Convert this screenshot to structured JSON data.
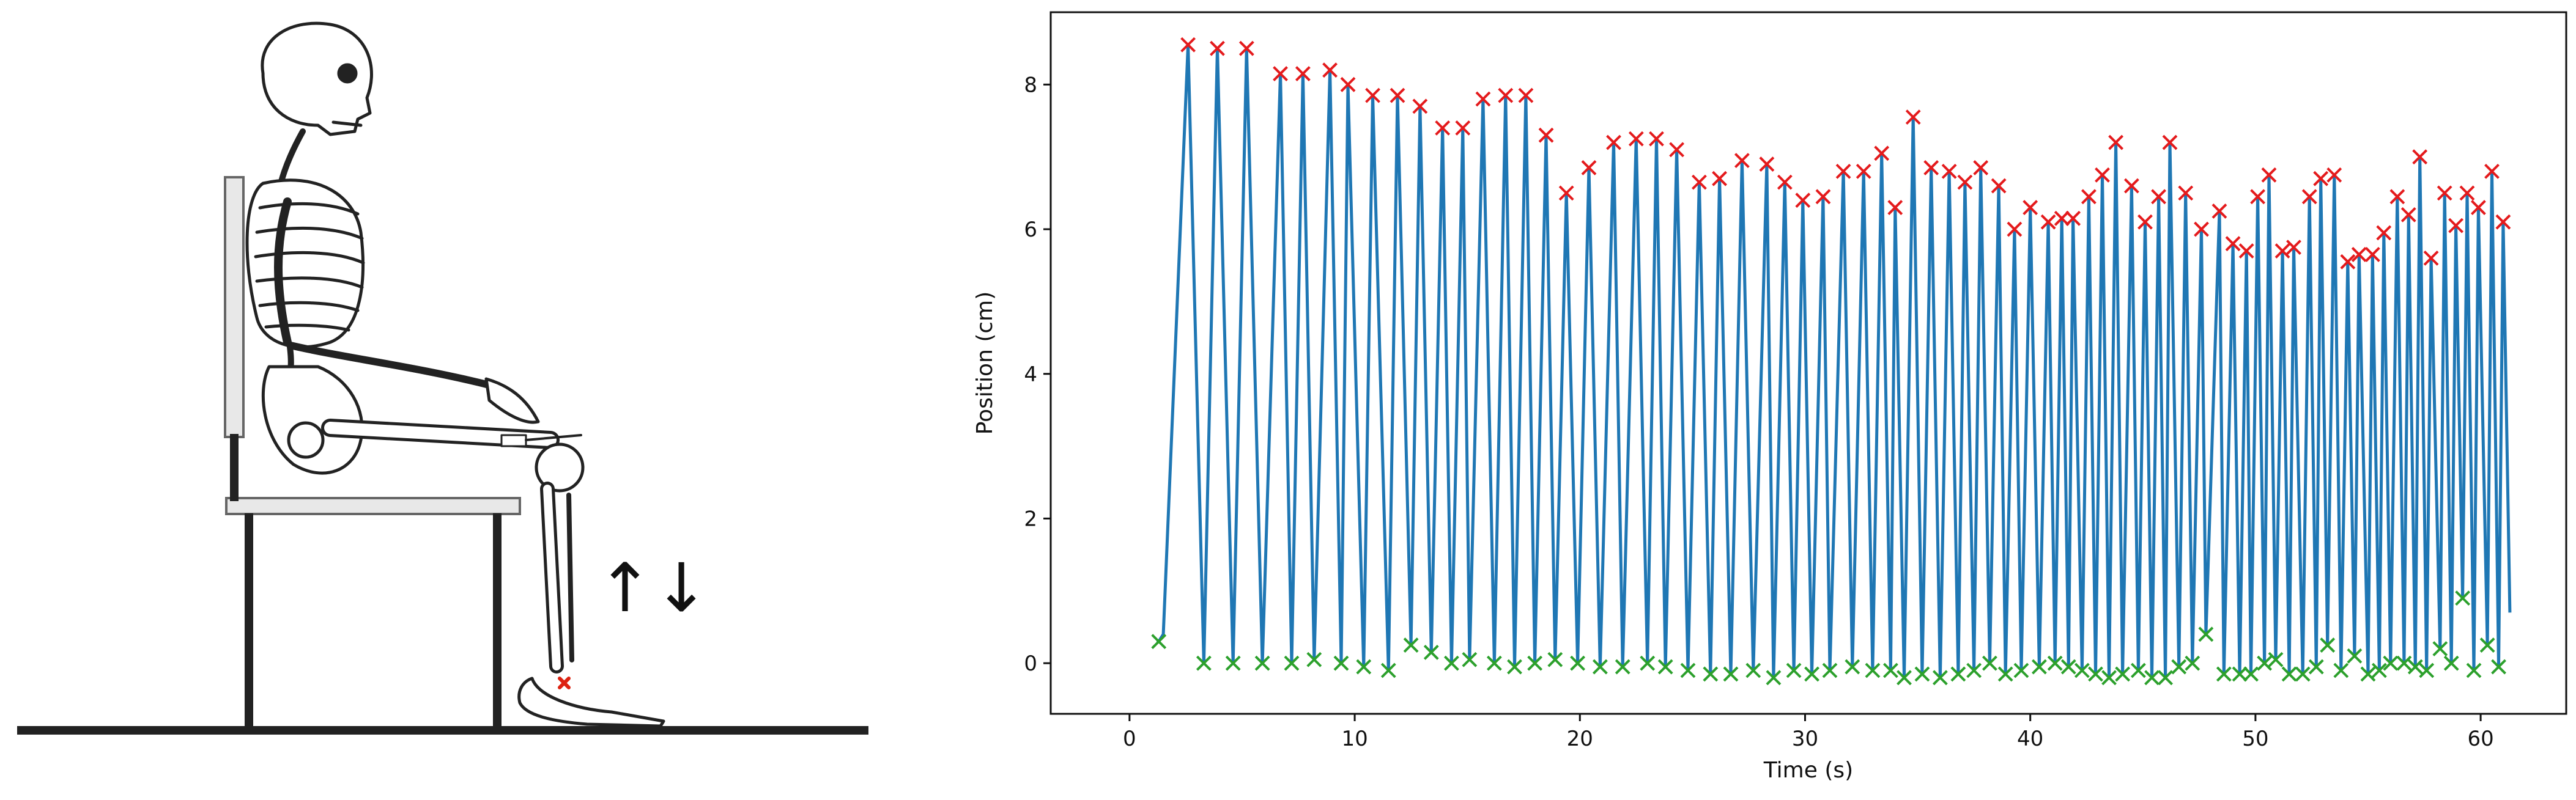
{
  "chart_data": {
    "type": "line",
    "title": "",
    "xlabel": "Time (s)",
    "ylabel": "Position (cm)",
    "xlim": [
      -3.5,
      63.8
    ],
    "ylim": [
      -0.7,
      9.0
    ],
    "xticks": [
      0,
      10,
      20,
      30,
      40,
      50,
      60
    ],
    "yticks": [
      0,
      2,
      4,
      6,
      8
    ],
    "grid": false,
    "legend": "none",
    "line_color": "#1f77b4",
    "peak_marker_color": "#e41a1c",
    "trough_marker_color": "#2ca02c",
    "signal_start": [
      [
        1.2,
        0.3
      ],
      [
        1.5,
        0.4
      ]
    ],
    "signal_end": [
      61.3,
      0.7
    ],
    "peaks": [
      [
        2.6,
        8.55
      ],
      [
        3.9,
        8.5
      ],
      [
        5.2,
        8.5
      ],
      [
        6.7,
        8.15
      ],
      [
        7.7,
        8.15
      ],
      [
        8.9,
        8.2
      ],
      [
        9.7,
        8.0
      ],
      [
        10.8,
        7.85
      ],
      [
        11.9,
        7.85
      ],
      [
        12.9,
        7.7
      ],
      [
        13.9,
        7.4
      ],
      [
        14.8,
        7.4
      ],
      [
        15.7,
        7.8
      ],
      [
        16.7,
        7.85
      ],
      [
        17.6,
        7.85
      ],
      [
        18.5,
        7.3
      ],
      [
        19.4,
        6.5
      ],
      [
        20.4,
        6.85
      ],
      [
        21.5,
        7.2
      ],
      [
        22.5,
        7.25
      ],
      [
        23.4,
        7.25
      ],
      [
        24.3,
        7.1
      ],
      [
        25.3,
        6.65
      ],
      [
        26.2,
        6.7
      ],
      [
        27.2,
        6.95
      ],
      [
        28.3,
        6.9
      ],
      [
        29.1,
        6.65
      ],
      [
        29.9,
        6.4
      ],
      [
        30.8,
        6.45
      ],
      [
        31.7,
        6.8
      ],
      [
        32.6,
        6.8
      ],
      [
        33.4,
        7.05
      ],
      [
        34.0,
        6.3
      ],
      [
        34.8,
        7.55
      ],
      [
        35.6,
        6.85
      ],
      [
        36.4,
        6.8
      ],
      [
        37.1,
        6.65
      ],
      [
        37.8,
        6.85
      ],
      [
        38.6,
        6.6
      ],
      [
        39.3,
        6.0
      ],
      [
        40.0,
        6.3
      ],
      [
        40.8,
        6.1
      ],
      [
        41.4,
        6.15
      ],
      [
        41.9,
        6.15
      ],
      [
        42.6,
        6.45
      ],
      [
        43.2,
        6.75
      ],
      [
        43.8,
        7.2
      ],
      [
        44.5,
        6.6
      ],
      [
        45.1,
        6.1
      ],
      [
        45.7,
        6.45
      ],
      [
        46.2,
        7.2
      ],
      [
        46.9,
        6.5
      ],
      [
        47.6,
        6.0
      ],
      [
        48.4,
        6.25
      ],
      [
        49.0,
        5.8
      ],
      [
        49.6,
        5.7
      ],
      [
        50.1,
        6.45
      ],
      [
        50.6,
        6.75
      ],
      [
        51.2,
        5.7
      ],
      [
        51.7,
        5.75
      ],
      [
        52.4,
        6.45
      ],
      [
        52.9,
        6.7
      ],
      [
        53.5,
        6.75
      ],
      [
        54.1,
        5.55
      ],
      [
        54.6,
        5.65
      ],
      [
        55.2,
        5.65
      ],
      [
        55.7,
        5.95
      ],
      [
        56.3,
        6.45
      ],
      [
        56.8,
        6.2
      ],
      [
        57.3,
        7.0
      ],
      [
        57.8,
        5.6
      ],
      [
        58.4,
        6.5
      ],
      [
        58.9,
        6.05
      ],
      [
        59.4,
        6.5
      ],
      [
        59.9,
        6.3
      ],
      [
        60.5,
        6.8
      ],
      [
        61.0,
        6.1
      ]
    ],
    "troughs": [
      [
        1.3,
        0.3
      ],
      [
        3.3,
        0.0
      ],
      [
        4.6,
        0.0
      ],
      [
        5.9,
        0.0
      ],
      [
        7.2,
        0.0
      ],
      [
        8.2,
        0.05
      ],
      [
        9.4,
        0.0
      ],
      [
        10.4,
        -0.05
      ],
      [
        11.5,
        -0.1
      ],
      [
        12.5,
        0.25
      ],
      [
        13.4,
        0.15
      ],
      [
        14.3,
        0.0
      ],
      [
        15.1,
        0.05
      ],
      [
        16.2,
        0.0
      ],
      [
        17.1,
        -0.05
      ],
      [
        18.0,
        0.0
      ],
      [
        18.9,
        0.05
      ],
      [
        19.9,
        0.0
      ],
      [
        20.9,
        -0.05
      ],
      [
        21.9,
        -0.05
      ],
      [
        23.0,
        0.0
      ],
      [
        23.8,
        -0.05
      ],
      [
        24.8,
        -0.1
      ],
      [
        25.8,
        -0.15
      ],
      [
        26.7,
        -0.15
      ],
      [
        27.7,
        -0.1
      ],
      [
        28.6,
        -0.2
      ],
      [
        29.5,
        -0.1
      ],
      [
        30.3,
        -0.15
      ],
      [
        31.1,
        -0.1
      ],
      [
        32.1,
        -0.05
      ],
      [
        33.0,
        -0.1
      ],
      [
        33.8,
        -0.1
      ],
      [
        34.4,
        -0.2
      ],
      [
        35.2,
        -0.15
      ],
      [
        36.0,
        -0.2
      ],
      [
        36.8,
        -0.15
      ],
      [
        37.5,
        -0.1
      ],
      [
        38.2,
        0.0
      ],
      [
        38.9,
        -0.15
      ],
      [
        39.6,
        -0.1
      ],
      [
        40.4,
        -0.05
      ],
      [
        41.1,
        0.0
      ],
      [
        41.7,
        -0.05
      ],
      [
        42.3,
        -0.1
      ],
      [
        42.9,
        -0.15
      ],
      [
        43.5,
        -0.2
      ],
      [
        44.1,
        -0.15
      ],
      [
        44.8,
        -0.1
      ],
      [
        45.4,
        -0.2
      ],
      [
        46.0,
        -0.2
      ],
      [
        46.6,
        -0.05
      ],
      [
        47.2,
        0.0
      ],
      [
        47.8,
        0.4
      ],
      [
        48.6,
        -0.15
      ],
      [
        49.3,
        -0.15
      ],
      [
        49.8,
        -0.15
      ],
      [
        50.4,
        0.0
      ],
      [
        50.9,
        0.05
      ],
      [
        51.5,
        -0.15
      ],
      [
        52.1,
        -0.15
      ],
      [
        52.7,
        -0.05
      ],
      [
        53.2,
        0.25
      ],
      [
        53.8,
        -0.1
      ],
      [
        54.4,
        0.1
      ],
      [
        55.0,
        -0.15
      ],
      [
        55.5,
        -0.1
      ],
      [
        56.0,
        0.0
      ],
      [
        56.6,
        0.0
      ],
      [
        57.1,
        -0.05
      ],
      [
        57.6,
        -0.1
      ],
      [
        58.2,
        0.2
      ],
      [
        58.7,
        0.0
      ],
      [
        59.2,
        0.9
      ],
      [
        59.7,
        -0.1
      ],
      [
        60.3,
        0.25
      ],
      [
        60.8,
        -0.05
      ]
    ]
  },
  "illustration": {
    "arrows": "↑↓"
  }
}
